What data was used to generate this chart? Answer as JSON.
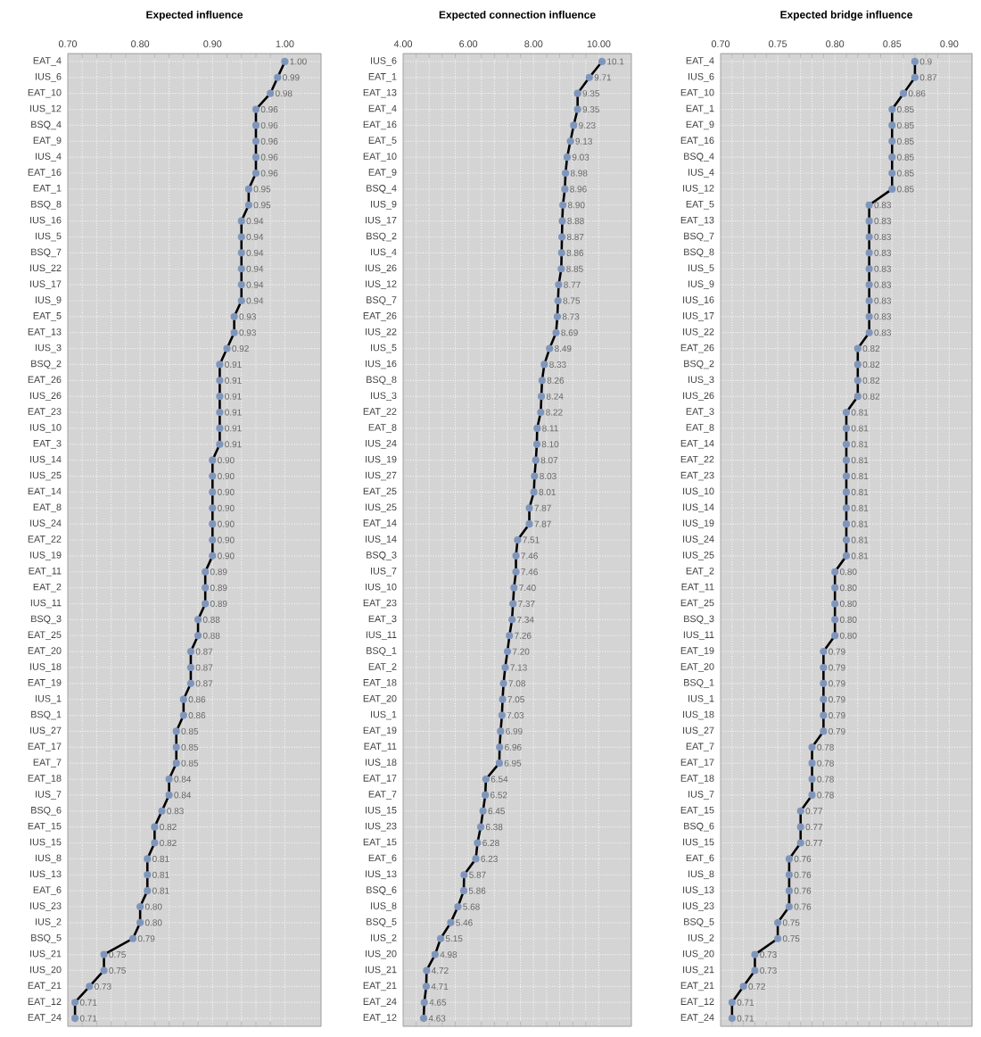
{
  "chart_data": [
    {
      "type": "line",
      "orientation": "horizontal",
      "title": "Expected influence",
      "marker": "circle",
      "line_style": "solid",
      "grid": true,
      "color": "#7f96bc",
      "categories": [
        "EAT_4",
        "IUS_6",
        "EAT_10",
        "IUS_12",
        "BSQ_4",
        "EAT_9",
        "IUS_4",
        "EAT_16",
        "EAT_1",
        "BSQ_8",
        "IUS_16",
        "IUS_5",
        "BSQ_7",
        "IUS_22",
        "IUS_17",
        "IUS_9",
        "EAT_5",
        "EAT_13",
        "IUS_3",
        "BSQ_2",
        "EAT_26",
        "IUS_26",
        "EAT_23",
        "IUS_10",
        "EAT_3",
        "IUS_14",
        "IUS_25",
        "EAT_14",
        "EAT_8",
        "IUS_24",
        "EAT_22",
        "IUS_19",
        "EAT_11",
        "EAT_2",
        "IUS_11",
        "BSQ_3",
        "EAT_25",
        "EAT_20",
        "IUS_18",
        "EAT_19",
        "IUS_1",
        "BSQ_1",
        "IUS_27",
        "EAT_17",
        "EAT_7",
        "EAT_18",
        "IUS_7",
        "BSQ_6",
        "EAT_15",
        "IUS_15",
        "IUS_8",
        "IUS_13",
        "EAT_6",
        "IUS_23",
        "IUS_2",
        "BSQ_5",
        "IUS_21",
        "IUS_20",
        "EAT_21",
        "EAT_12",
        "EAT_24"
      ],
      "values": [
        1.0,
        0.99,
        0.98,
        0.96,
        0.96,
        0.96,
        0.96,
        0.96,
        0.95,
        0.95,
        0.94,
        0.94,
        0.94,
        0.94,
        0.94,
        0.94,
        0.93,
        0.93,
        0.92,
        0.91,
        0.91,
        0.91,
        0.91,
        0.91,
        0.91,
        0.9,
        0.9,
        0.9,
        0.9,
        0.9,
        0.9,
        0.9,
        0.89,
        0.89,
        0.89,
        0.88,
        0.88,
        0.87,
        0.87,
        0.87,
        0.86,
        0.86,
        0.85,
        0.85,
        0.85,
        0.84,
        0.84,
        0.83,
        0.82,
        0.82,
        0.81,
        0.81,
        0.81,
        0.8,
        0.8,
        0.79,
        0.75,
        0.75,
        0.73,
        0.71,
        0.71
      ],
      "value_labels": [
        "1.00",
        "0.99",
        "0.98",
        "0.96",
        "0.96",
        "0.96",
        "0.96",
        "0.96",
        "0.95",
        "0.95",
        "0.94",
        "0.94",
        "0.94",
        "0.94",
        "0.94",
        "0.94",
        "0.93",
        "0.93",
        "0.92",
        "0.91",
        "0.91",
        "0.91",
        "0.91",
        "0.91",
        "0.91",
        "0.90",
        "0.90",
        "0.90",
        "0.90",
        "0.90",
        "0.90",
        "0.90",
        "0.89",
        "0.89",
        "0.89",
        "0.88",
        "0.88",
        "0.87",
        "0.87",
        "0.87",
        "0.86",
        "0.86",
        "0.85",
        "0.85",
        "0.85",
        "0.84",
        "0.84",
        "0.83",
        "0.82",
        "0.82",
        "0.81",
        "0.81",
        "0.81",
        "0.80",
        "0.80",
        "0.79",
        "0.75",
        "0.75",
        "0.73",
        "0.71",
        "0.71"
      ],
      "xlim": [
        0.7,
        1.05
      ],
      "xticks": [
        {
          "value": 0.7,
          "label": "0.70"
        },
        {
          "value": 0.8,
          "label": "0.80"
        },
        {
          "value": 0.9,
          "label": "0.90"
        },
        {
          "value": 1.0,
          "label": "1.00"
        }
      ]
    },
    {
      "type": "line",
      "orientation": "horizontal",
      "title": "Expected connection influence",
      "marker": "circle",
      "line_style": "solid",
      "grid": true,
      "color": "#7f96bc",
      "categories": [
        "IUS_6",
        "EAT_1",
        "EAT_13",
        "EAT_4",
        "EAT_16",
        "EAT_5",
        "EAT_10",
        "EAT_9",
        "BSQ_4",
        "IUS_9",
        "IUS_17",
        "BSQ_2",
        "IUS_4",
        "IUS_26",
        "IUS_12",
        "BSQ_7",
        "EAT_26",
        "IUS_22",
        "IUS_5",
        "IUS_16",
        "BSQ_8",
        "IUS_3",
        "EAT_22",
        "EAT_8",
        "IUS_24",
        "IUS_19",
        "IUS_27",
        "EAT_25",
        "IUS_25",
        "EAT_14",
        "IUS_14",
        "BSQ_3",
        "IUS_7",
        "IUS_10",
        "EAT_23",
        "EAT_3",
        "IUS_11",
        "BSQ_1",
        "EAT_2",
        "EAT_18",
        "EAT_20",
        "IUS_1",
        "EAT_19",
        "EAT_11",
        "IUS_18",
        "EAT_17",
        "EAT_7",
        "IUS_15",
        "IUS_23",
        "EAT_15",
        "EAT_6",
        "IUS_13",
        "BSQ_6",
        "IUS_8",
        "BSQ_5",
        "IUS_2",
        "IUS_20",
        "IUS_21",
        "EAT_21",
        "EAT_24",
        "EAT_12"
      ],
      "values": [
        10.1,
        9.71,
        9.35,
        9.35,
        9.23,
        9.13,
        9.03,
        8.98,
        8.96,
        8.9,
        8.88,
        8.87,
        8.86,
        8.85,
        8.77,
        8.75,
        8.73,
        8.69,
        8.49,
        8.33,
        8.26,
        8.24,
        8.22,
        8.11,
        8.1,
        8.07,
        8.03,
        8.01,
        7.87,
        7.87,
        7.51,
        7.46,
        7.46,
        7.4,
        7.37,
        7.34,
        7.26,
        7.2,
        7.13,
        7.08,
        7.05,
        7.03,
        6.99,
        6.96,
        6.95,
        6.54,
        6.52,
        6.45,
        6.38,
        6.28,
        6.23,
        5.87,
        5.86,
        5.68,
        5.46,
        5.15,
        4.98,
        4.72,
        4.71,
        4.65,
        4.63
      ],
      "value_labels": [
        "10.1",
        "9.71",
        "9.35",
        "9.35",
        "9.23",
        "9.13",
        "9.03",
        "8.98",
        "8.96",
        "8.90",
        "8.88",
        "8.87",
        "8.86",
        "8.85",
        "8.77",
        "8.75",
        "8.73",
        "8.69",
        "8.49",
        "8.33",
        "8.26",
        "8.24",
        "8.22",
        "8.11",
        "8.10",
        "8.07",
        "8.03",
        "8.01",
        "7.87",
        "7.87",
        "7.51",
        "7.46",
        "7.46",
        "7.40",
        "7.37",
        "7.34",
        "7.26",
        "7.20",
        "7.13",
        "7.08",
        "7.05",
        "7.03",
        "6.99",
        "6.96",
        "6.95",
        "6.54",
        "6.52",
        "6.45",
        "6.38",
        "6.28",
        "6.23",
        "5.87",
        "5.86",
        "5.68",
        "5.46",
        "5.15",
        "4.98",
        "4.72",
        "4.71",
        "4.65",
        "4.63"
      ],
      "xlim": [
        4,
        11
      ],
      "xticks": [
        {
          "value": 4,
          "label": "4.00"
        },
        {
          "value": 6,
          "label": "6.00"
        },
        {
          "value": 8,
          "label": "8.00"
        },
        {
          "value": 10,
          "label": "10.00"
        }
      ]
    },
    {
      "type": "line",
      "orientation": "horizontal",
      "title": "Expected bridge influence",
      "marker": "circle",
      "line_style": "solid",
      "grid": true,
      "color": "#7f96bc",
      "categories": [
        "EAT_4",
        "IUS_6",
        "EAT_10",
        "EAT_1",
        "EAT_9",
        "EAT_16",
        "BSQ_4",
        "IUS_4",
        "IUS_12",
        "EAT_5",
        "EAT_13",
        "BSQ_7",
        "BSQ_8",
        "IUS_5",
        "IUS_9",
        "IUS_16",
        "IUS_17",
        "IUS_22",
        "EAT_26",
        "BSQ_2",
        "IUS_3",
        "IUS_26",
        "EAT_3",
        "EAT_8",
        "EAT_14",
        "EAT_22",
        "EAT_23",
        "IUS_10",
        "IUS_14",
        "IUS_19",
        "IUS_24",
        "IUS_25",
        "EAT_2",
        "EAT_11",
        "EAT_25",
        "BSQ_3",
        "IUS_11",
        "EAT_19",
        "EAT_20",
        "BSQ_1",
        "IUS_1",
        "IUS_18",
        "IUS_27",
        "EAT_7",
        "EAT_17",
        "EAT_18",
        "IUS_7",
        "EAT_15",
        "BSQ_6",
        "IUS_15",
        "EAT_6",
        "IUS_8",
        "IUS_13",
        "IUS_23",
        "BSQ_5",
        "IUS_2",
        "IUS_20",
        "IUS_21",
        "EAT_21",
        "EAT_12",
        "EAT_24"
      ],
      "values": [
        0.87,
        0.87,
        0.86,
        0.85,
        0.85,
        0.85,
        0.85,
        0.85,
        0.85,
        0.83,
        0.83,
        0.83,
        0.83,
        0.83,
        0.83,
        0.83,
        0.83,
        0.83,
        0.82,
        0.82,
        0.82,
        0.82,
        0.81,
        0.81,
        0.81,
        0.81,
        0.81,
        0.81,
        0.81,
        0.81,
        0.81,
        0.81,
        0.8,
        0.8,
        0.8,
        0.8,
        0.8,
        0.79,
        0.79,
        0.79,
        0.79,
        0.79,
        0.79,
        0.78,
        0.78,
        0.78,
        0.78,
        0.77,
        0.77,
        0.77,
        0.76,
        0.76,
        0.76,
        0.76,
        0.75,
        0.75,
        0.73,
        0.73,
        0.72,
        0.71,
        0.71
      ],
      "value_labels": [
        "0.9",
        "0.87",
        "0.86",
        "0.85",
        "0.85",
        "0.85",
        "0.85",
        "0.85",
        "0.85",
        "0.83",
        "0.83",
        "0.83",
        "0.83",
        "0.83",
        "0.83",
        "0.83",
        "0.83",
        "0.83",
        "0.82",
        "0.82",
        "0.82",
        "0.82",
        "0.81",
        "0.81",
        "0.81",
        "0.81",
        "0.81",
        "0.81",
        "0.81",
        "0.81",
        "0.81",
        "0.81",
        "0.80",
        "0.80",
        "0.80",
        "0.80",
        "0.80",
        "0.79",
        "0.79",
        "0.79",
        "0.79",
        "0.79",
        "0.79",
        "0.78",
        "0.78",
        "0.78",
        "0.78",
        "0.77",
        "0.77",
        "0.77",
        "0.76",
        "0.76",
        "0.76",
        "0.76",
        "0.75",
        "0.75",
        "0.73",
        "0.73",
        "0.72",
        "0.71",
        "0.71"
      ],
      "xlim": [
        0.7,
        0.92
      ],
      "xticks": [
        {
          "value": 0.7,
          "label": "0.70"
        },
        {
          "value": 0.75,
          "label": "0.75"
        },
        {
          "value": 0.8,
          "label": "0.80"
        },
        {
          "value": 0.85,
          "label": "0.85"
        },
        {
          "value": 0.9,
          "label": "0.90"
        }
      ]
    }
  ]
}
